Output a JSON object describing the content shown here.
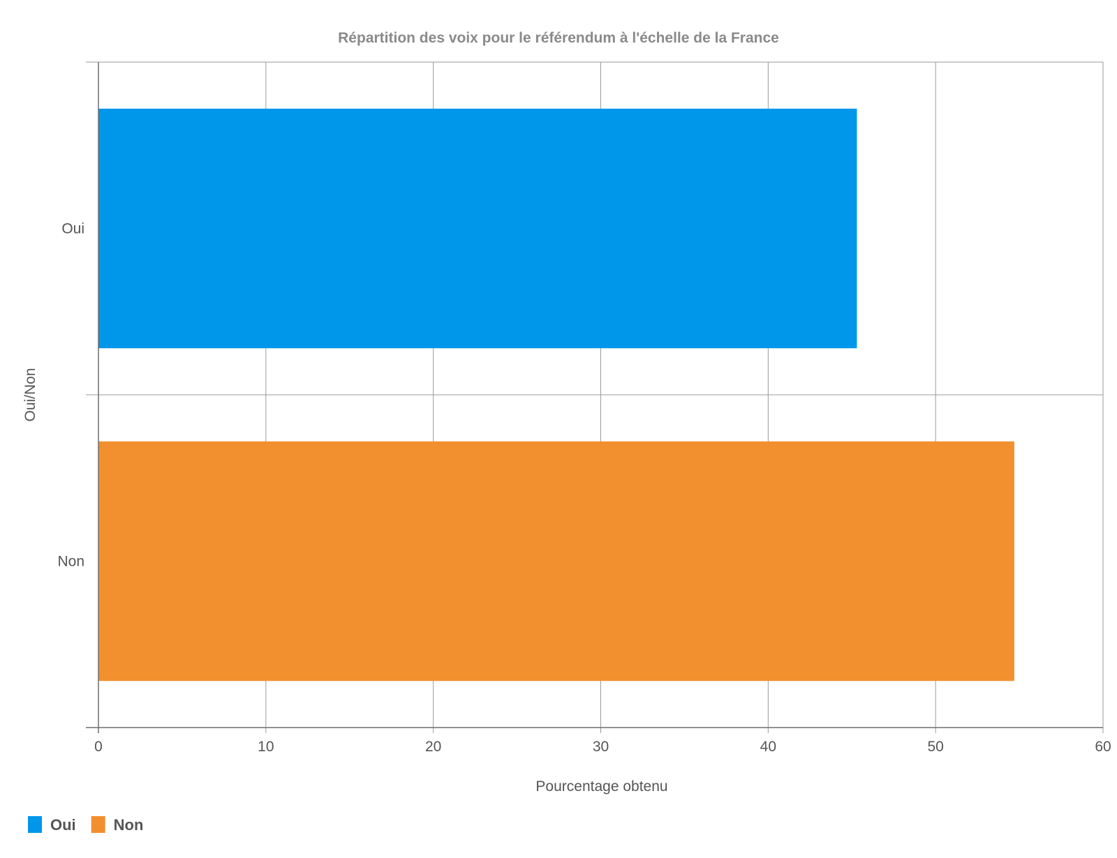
{
  "chart_data": {
    "type": "bar",
    "orientation": "horizontal",
    "title": "Répartition des voix pour le référendum à l'échelle de la France",
    "xlabel": "Pourcentage obtenu",
    "ylabel": "Oui/Non",
    "categories": [
      "Oui",
      "Non"
    ],
    "values": [
      45.3,
      54.7
    ],
    "colors": [
      "#0096ea",
      "#f28f2e"
    ],
    "xlim": [
      0,
      60
    ],
    "xticks": [
      "0",
      "10",
      "20",
      "30",
      "40",
      "50",
      "60"
    ],
    "grid": true,
    "legend": {
      "position": "bottom-left",
      "entries": [
        {
          "label": "Oui",
          "color": "#0096ea"
        },
        {
          "label": "Non",
          "color": "#f28f2e"
        }
      ]
    }
  }
}
